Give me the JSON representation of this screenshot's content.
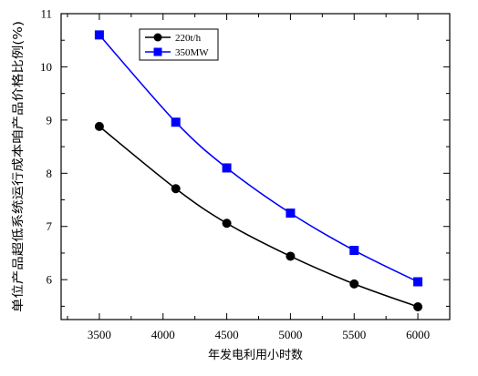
{
  "chart_data": {
    "type": "line",
    "xlabel": "年发电利用小时数",
    "ylabel": "单位产品超低系统运行成本咱产品价格比例(%)",
    "xlim": [
      3200,
      6250
    ],
    "ylim": [
      5.25,
      11
    ],
    "x_ticks": [
      3500,
      4000,
      4500,
      5000,
      5500,
      6000
    ],
    "y_ticks": [
      6,
      7,
      8,
      9,
      10,
      11
    ],
    "x_tick_labels": [
      "3500",
      "4000",
      "4500",
      "5000",
      "5500",
      "6000"
    ],
    "y_tick_labels": [
      "6",
      "7",
      "8",
      "9",
      "10",
      "11"
    ],
    "grid": false,
    "legend_position": "top-left",
    "series": [
      {
        "name": "220t/h",
        "color": "#000000",
        "marker": "circle",
        "x": [
          3500,
          4100,
          4500,
          5000,
          5500,
          6000
        ],
        "values": [
          8.88,
          7.71,
          7.06,
          6.44,
          5.92,
          5.49
        ]
      },
      {
        "name": "350MW",
        "color": "#0000ff",
        "marker": "square",
        "x": [
          3500,
          4100,
          4500,
          5000,
          5500,
          6000
        ],
        "values": [
          10.6,
          8.96,
          8.1,
          7.25,
          6.55,
          5.96
        ]
      }
    ]
  }
}
